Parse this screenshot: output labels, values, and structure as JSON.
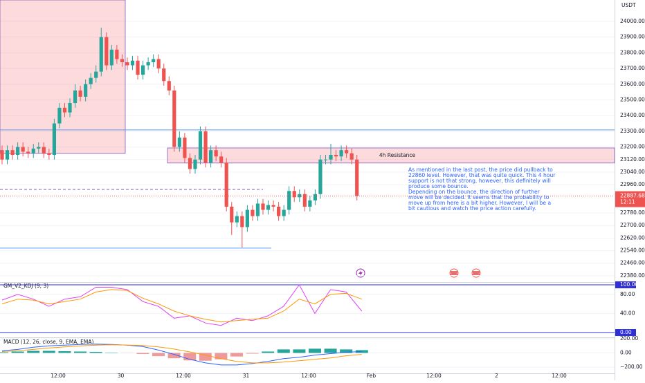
{
  "chart_data": [
    {
      "type": "candlestick",
      "unit": "USDT",
      "ylim": [
        22340,
        24136
      ],
      "yticks": [
        {
          "value": 24000,
          "label": "24000.00"
        },
        {
          "value": 23900,
          "label": "23900.00"
        },
        {
          "value": 23800,
          "label": "23800.00"
        },
        {
          "value": 23700,
          "label": "23700.00"
        },
        {
          "value": 23600,
          "label": "23600.00"
        },
        {
          "value": 23500,
          "label": "23500.00"
        },
        {
          "value": 23400,
          "label": "23400.00"
        },
        {
          "value": 23300,
          "label": "23300.00"
        },
        {
          "value": 23200,
          "label": "23200.00"
        },
        {
          "value": 23120,
          "label": "23120.00"
        },
        {
          "value": 23040,
          "label": "23040.00"
        },
        {
          "value": 22960,
          "label": "22960.00"
        },
        {
          "value": 22780,
          "label": "22780.00"
        },
        {
          "value": 22700,
          "label": "22700.00"
        },
        {
          "value": 22620,
          "label": "22620.00"
        },
        {
          "value": 22540,
          "label": "22540.00"
        },
        {
          "value": 22460,
          "label": "22460.00"
        },
        {
          "value": 22380,
          "label": "22380.00"
        }
      ],
      "time_labels": [
        "12:00",
        "30",
        "12:00",
        "31",
        "12:00",
        "Feb",
        "12:00",
        "2",
        "12:00"
      ],
      "up_color": "#26a69a",
      "down_color": "#ef5350",
      "candles": [
        [
          23180,
          23210,
          23090,
          23120
        ],
        [
          23120,
          23210,
          23090,
          23180
        ],
        [
          23180,
          23210,
          23120,
          23150
        ],
        [
          23150,
          23230,
          23120,
          23200
        ],
        [
          23200,
          23230,
          23140,
          23170
        ],
        [
          23170,
          23200,
          23130,
          23160
        ],
        [
          23160,
          23220,
          23130,
          23190
        ],
        [
          23190,
          23230,
          23160,
          23200
        ],
        [
          23200,
          23230,
          23130,
          23160
        ],
        [
          23160,
          23190,
          23120,
          23150
        ],
        [
          23150,
          23380,
          23120,
          23350
        ],
        [
          23350,
          23480,
          23320,
          23450
        ],
        [
          23450,
          23480,
          23390,
          23420
        ],
        [
          23420,
          23510,
          23390,
          23480
        ],
        [
          23480,
          23600,
          23450,
          23560
        ],
        [
          23560,
          23590,
          23490,
          23520
        ],
        [
          23520,
          23630,
          23490,
          23600
        ],
        [
          23600,
          23670,
          23570,
          23640
        ],
        [
          23640,
          23720,
          23610,
          23680
        ],
        [
          23680,
          23960,
          23650,
          23900
        ],
        [
          23900,
          23930,
          23690,
          23720
        ],
        [
          23720,
          23850,
          23690,
          23820
        ],
        [
          23820,
          23850,
          23730,
          23760
        ],
        [
          23760,
          23790,
          23710,
          23740
        ],
        [
          23740,
          23770,
          23690,
          23720
        ],
        [
          23720,
          23780,
          23690,
          23750
        ],
        [
          23750,
          23780,
          23630,
          23660
        ],
        [
          23660,
          23750,
          23630,
          23720
        ],
        [
          23720,
          23770,
          23690,
          23740
        ],
        [
          23740,
          23790,
          23710,
          23760
        ],
        [
          23760,
          23790,
          23670,
          23700
        ],
        [
          23700,
          23730,
          23590,
          23620
        ],
        [
          23620,
          23650,
          23530,
          23560
        ],
        [
          23560,
          23590,
          23170,
          23200
        ],
        [
          23200,
          23300,
          23170,
          23260
        ],
        [
          23260,
          23290,
          23100,
          23130
        ],
        [
          23130,
          23160,
          23030,
          23060
        ],
        [
          23060,
          23150,
          23030,
          23120
        ],
        [
          23120,
          23330,
          23090,
          23300
        ],
        [
          23300,
          23330,
          23070,
          23100
        ],
        [
          23100,
          23210,
          23070,
          23180
        ],
        [
          23180,
          23210,
          23110,
          23140
        ],
        [
          23140,
          23170,
          23070,
          23100
        ],
        [
          23100,
          23130,
          22790,
          22820
        ],
        [
          22820,
          22850,
          22640,
          22720
        ],
        [
          22720,
          22790,
          22690,
          22760
        ],
        [
          22760,
          22790,
          22560,
          22690
        ],
        [
          22690,
          22830,
          22660,
          22800
        ],
        [
          22800,
          22830,
          22730,
          22760
        ],
        [
          22760,
          22870,
          22730,
          22840
        ],
        [
          22840,
          22870,
          22770,
          22800
        ],
        [
          22800,
          22860,
          22770,
          22830
        ],
        [
          22830,
          22860,
          22790,
          22820
        ],
        [
          22820,
          22850,
          22730,
          22760
        ],
        [
          22760,
          22830,
          22730,
          22800
        ],
        [
          22800,
          22950,
          22770,
          22920
        ],
        [
          22920,
          22950,
          22850,
          22880
        ],
        [
          22880,
          22930,
          22850,
          22900
        ],
        [
          22900,
          22930,
          22790,
          22820
        ],
        [
          22820,
          22890,
          22790,
          22860
        ],
        [
          22860,
          22930,
          22830,
          22900
        ],
        [
          22900,
          23150,
          22870,
          23120
        ],
        [
          23120,
          23150,
          23090,
          23120
        ],
        [
          23120,
          23220,
          23090,
          23150
        ],
        [
          23150,
          23180,
          23110,
          23140
        ],
        [
          23140,
          23210,
          23110,
          23180
        ],
        [
          23180,
          23210,
          23130,
          23160
        ],
        [
          23160,
          23190,
          23090,
          23120
        ],
        [
          23120,
          23150,
          22860,
          22890
        ]
      ],
      "zones": [
        {
          "top": 24136,
          "bottom": 23159
        },
        {
          "top": 23194,
          "bottom": 23098,
          "label": "4h Resistance"
        }
      ],
      "lines": [
        23309,
        22556
      ],
      "dashed_line": 22930,
      "last_price": 22887.68,
      "countdown": "12:11",
      "note": [
        "As mentioned in the last post, the price did pullback to",
        "22860 level. However, that was quite quick. This 4 hour",
        "support is not that strong, however, this definitely will",
        "produce some bounce.",
        "Depending on the bounce, the direction of further",
        "move will be decided. It seems that the probability to",
        "move up from here is a bit higher. However, I will be a",
        "bit cautious and watch the price action carefully."
      ]
    },
    {
      "type": "line",
      "title": "GM_V2_KDJ (9, 3)",
      "ylim": [
        -10.1,
        105.8
      ],
      "yticks": [
        {
          "value": 80,
          "label": "80.00"
        },
        {
          "value": 40,
          "label": "40.00"
        }
      ],
      "levels": [
        {
          "value": 100,
          "label": "100.00"
        },
        {
          "value": 0,
          "label": "0.00"
        }
      ],
      "series": [
        {
          "color": "#e040fb",
          "values": [
            68,
            80,
            70,
            55,
            70,
            75,
            95,
            95,
            90,
            65,
            55,
            30,
            35,
            20,
            15,
            30,
            25,
            35,
            55,
            100,
            40,
            90,
            85,
            45
          ]
        },
        {
          "color": "#ff9800",
          "values": [
            60,
            70,
            68,
            60,
            65,
            70,
            85,
            90,
            88,
            72,
            60,
            45,
            35,
            28,
            22,
            25,
            28,
            30,
            45,
            70,
            60,
            80,
            82,
            70
          ]
        }
      ]
    },
    {
      "type": "macd",
      "title": "MACD (12, 26, close, 9, EMA, EMA)",
      "ylim": [
        -288,
        220
      ],
      "yticks": [
        {
          "value": 200,
          "label": "200.00"
        },
        {
          "value": 0,
          "label": "0.00"
        },
        {
          "value": -200,
          "label": "−200.00"
        }
      ],
      "histogram": [
        10,
        20,
        30,
        30,
        25,
        20,
        15,
        5,
        -2,
        -15,
        -45,
        -75,
        -105,
        -110,
        -90,
        -50,
        -10,
        20,
        50,
        50,
        60,
        60,
        50,
        40
      ],
      "hist_up": "#26a69a",
      "hist_down": "#ef9a9a",
      "series": [
        {
          "color": "#2962ff",
          "values": [
            30,
            50,
            80,
            100,
            110,
            120,
            125,
            120,
            110,
            90,
            40,
            -20,
            -90,
            -140,
            -170,
            -170,
            -150,
            -120,
            -80,
            -60,
            -30,
            -10,
            10,
            20
          ]
        },
        {
          "color": "#ff9800",
          "values": [
            20,
            30,
            50,
            70,
            85,
            100,
            110,
            115,
            112,
            105,
            85,
            55,
            15,
            -30,
            -80,
            -120,
            -140,
            -140,
            -130,
            -110,
            -90,
            -70,
            -40,
            -20
          ]
        }
      ]
    }
  ]
}
